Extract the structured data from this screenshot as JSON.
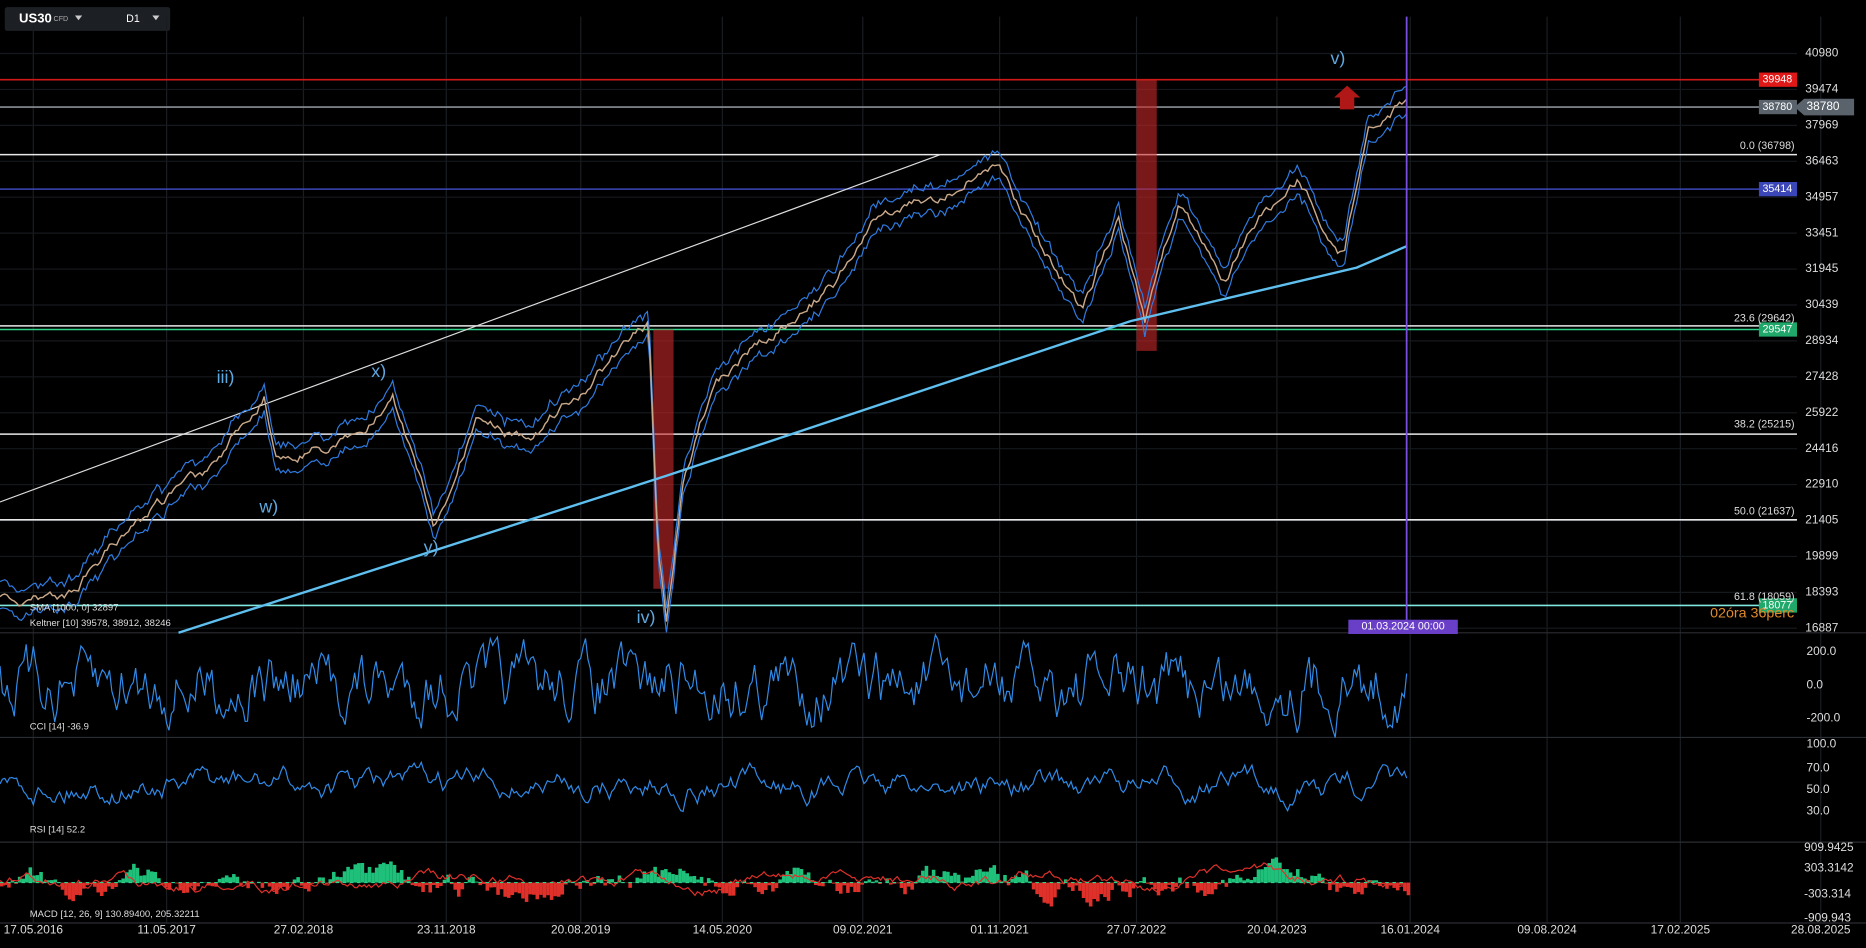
{
  "toolbar": {
    "symbol": "US30",
    "symbol_type": "CFD",
    "timeframe": "D1"
  },
  "price_axis": [
    "40980",
    "39474",
    "37969",
    "36463",
    "34957",
    "33451",
    "31945",
    "30439",
    "28934",
    "27428",
    "25922",
    "24416",
    "22910",
    "21405",
    "19899",
    "18393",
    "16887"
  ],
  "price_tags": [
    {
      "label": "39948",
      "color": "#e01818"
    },
    {
      "label": "38780",
      "color": "#5a636c"
    },
    {
      "label": "35414",
      "color": "#3b47b8"
    },
    {
      "label": "29547",
      "color": "#1fa86a"
    },
    {
      "label": "18077",
      "color": "#1fa86a"
    }
  ],
  "fib_levels": [
    "0.0 (36798)",
    "23.6 (29642)",
    "38.2 (25215)",
    "50.0 (21637)",
    "61.8 (18059)"
  ],
  "wave_labels": [
    "v)",
    "iii)",
    "x)",
    "w)",
    "y)",
    "iv)"
  ],
  "indicators": {
    "sma": "SMA [1000, 0] 32897",
    "keltner": "Keltner [10] 39578, 38912, 38246",
    "cci": "CCI [14] -36.9",
    "rsi": "RSI [14] 52.2",
    "macd": "MACD [12, 26, 9] 130.89400,  205.32211"
  },
  "cci_axis": [
    "200.0",
    "0.0",
    "-200.0"
  ],
  "rsi_axis": [
    "100.0",
    "70.0",
    "50.0",
    "30.0"
  ],
  "macd_axis": [
    "909.9425",
    "303.3142",
    "-303.314",
    "-909.943"
  ],
  "date_axis": [
    "17.05.2016",
    "11.05.2017",
    "27.02.2018",
    "23.11.2018",
    "20.08.2019",
    "14.05.2020",
    "09.02.2021",
    "01.11.2021",
    "27.07.2022",
    "20.04.2023",
    "16.01.2024",
    "09.08.2024",
    "17.02.2025",
    "28.08.2025"
  ],
  "crosshair_date": "01.03.2024 00:00",
  "countdown": "02óra 36perc"
}
